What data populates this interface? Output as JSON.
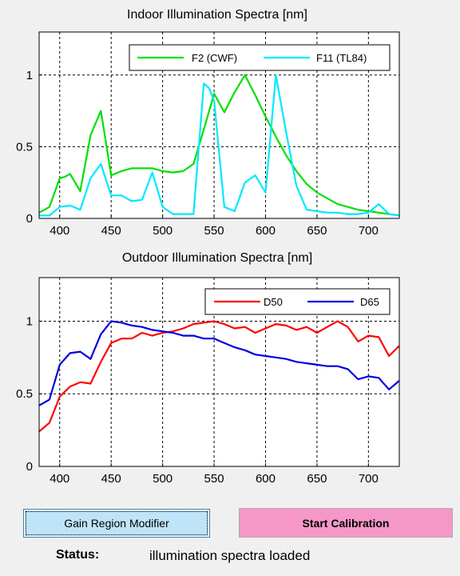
{
  "chart_data": [
    {
      "type": "line",
      "title": "Indoor Illumination Spectra [nm]",
      "xlim": [
        380,
        730
      ],
      "ylim": [
        0,
        1.3
      ],
      "x_ticks": [
        400,
        450,
        500,
        550,
        600,
        650,
        700
      ],
      "y_ticks": [
        0,
        0.5,
        1
      ],
      "y_tick_labels": [
        "0",
        "0.5",
        "1"
      ],
      "grid": true,
      "legend_position": "top-right",
      "legend_layout": "horizontal",
      "series": [
        {
          "name": "F2 (CWF)",
          "color": "#00e000",
          "x": [
            380,
            390,
            400,
            405,
            410,
            420,
            430,
            440,
            450,
            460,
            470,
            480,
            490,
            500,
            510,
            520,
            530,
            540,
            550,
            560,
            570,
            580,
            590,
            600,
            610,
            620,
            630,
            640,
            650,
            660,
            670,
            680,
            690,
            700,
            710,
            720,
            730
          ],
          "y": [
            0.04,
            0.08,
            0.28,
            0.29,
            0.31,
            0.19,
            0.58,
            0.75,
            0.3,
            0.33,
            0.35,
            0.35,
            0.35,
            0.33,
            0.32,
            0.33,
            0.38,
            0.62,
            0.87,
            0.74,
            0.88,
            1.0,
            0.86,
            0.71,
            0.57,
            0.44,
            0.33,
            0.24,
            0.18,
            0.14,
            0.1,
            0.08,
            0.06,
            0.05,
            0.04,
            0.03,
            0.02
          ]
        },
        {
          "name": "F11 (TL84)",
          "color": "#00e8ff",
          "x": [
            380,
            390,
            400,
            410,
            420,
            430,
            440,
            450,
            460,
            470,
            480,
            490,
            500,
            510,
            520,
            530,
            540,
            545,
            550,
            560,
            570,
            580,
            590,
            600,
            610,
            620,
            630,
            640,
            650,
            660,
            670,
            680,
            690,
            700,
            710,
            720,
            730
          ],
          "y": [
            0.02,
            0.02,
            0.08,
            0.09,
            0.06,
            0.28,
            0.38,
            0.16,
            0.16,
            0.12,
            0.13,
            0.32,
            0.08,
            0.03,
            0.03,
            0.03,
            0.94,
            0.91,
            0.82,
            0.08,
            0.05,
            0.25,
            0.3,
            0.18,
            1.0,
            0.6,
            0.23,
            0.06,
            0.05,
            0.04,
            0.04,
            0.03,
            0.03,
            0.04,
            0.1,
            0.03,
            0.02
          ]
        }
      ]
    },
    {
      "type": "line",
      "title": "Outdoor Illumination Spectra [nm]",
      "xlim": [
        380,
        730
      ],
      "ylim": [
        0,
        1.3
      ],
      "x_ticks": [
        400,
        450,
        500,
        550,
        600,
        650,
        700
      ],
      "y_ticks": [
        0,
        0.5,
        1
      ],
      "y_tick_labels": [
        "0",
        "0.5",
        "1"
      ],
      "grid": true,
      "legend_position": "top-right",
      "legend_layout": "horizontal",
      "series": [
        {
          "name": "D50",
          "color": "#ff0000",
          "x": [
            380,
            390,
            400,
            410,
            420,
            430,
            440,
            450,
            460,
            470,
            480,
            490,
            500,
            510,
            520,
            530,
            540,
            550,
            560,
            570,
            580,
            590,
            600,
            610,
            620,
            630,
            640,
            650,
            660,
            670,
            680,
            690,
            700,
            710,
            720,
            730
          ],
          "y": [
            0.24,
            0.3,
            0.48,
            0.55,
            0.58,
            0.57,
            0.72,
            0.85,
            0.88,
            0.88,
            0.92,
            0.9,
            0.92,
            0.93,
            0.95,
            0.98,
            0.99,
            1.0,
            0.98,
            0.95,
            0.96,
            0.92,
            0.95,
            0.98,
            0.97,
            0.94,
            0.96,
            0.92,
            0.96,
            1.0,
            0.96,
            0.86,
            0.9,
            0.89,
            0.76,
            0.83
          ]
        },
        {
          "name": "D65",
          "color": "#0000e0",
          "x": [
            380,
            390,
            400,
            410,
            420,
            430,
            440,
            450,
            460,
            470,
            480,
            490,
            500,
            510,
            520,
            530,
            540,
            550,
            560,
            570,
            580,
            590,
            600,
            610,
            620,
            630,
            640,
            650,
            660,
            670,
            680,
            690,
            700,
            710,
            720,
            730
          ],
          "y": [
            0.42,
            0.46,
            0.7,
            0.78,
            0.79,
            0.74,
            0.91,
            1.0,
            0.99,
            0.97,
            0.96,
            0.94,
            0.93,
            0.92,
            0.9,
            0.9,
            0.88,
            0.88,
            0.85,
            0.82,
            0.8,
            0.77,
            0.76,
            0.75,
            0.74,
            0.72,
            0.71,
            0.7,
            0.69,
            0.69,
            0.67,
            0.6,
            0.62,
            0.61,
            0.53,
            0.59
          ]
        }
      ]
    }
  ],
  "buttons": {
    "gain_region_modifier": "Gain Region Modifier",
    "start_calibration": "Start Calibration"
  },
  "status": {
    "label": "Status:",
    "value": "illumination spectra loaded"
  }
}
